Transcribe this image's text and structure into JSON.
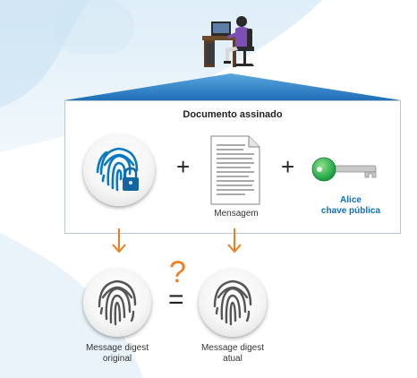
{
  "panel": {
    "title": "Documento assinado",
    "message_label": "Mensagem",
    "key_label_line1": "Alice",
    "key_label_line2": "chave pública"
  },
  "bottom": {
    "question": "?",
    "equals": "=",
    "left_label_line1": "Message digest",
    "left_label_line2": "original",
    "right_label_line1": "Message digest",
    "right_label_line2": "atual"
  },
  "symbols": {
    "plus": "+"
  },
  "colors": {
    "arrow": "#f07c1b",
    "fingerprint_blue": "#0a79c4",
    "fingerprint_gray": "#555555",
    "lock": "#1565a0",
    "key": "#1fa84a",
    "beam": "#2f83c9",
    "alice_text": "#0e6fc4"
  },
  "icons": [
    "person-at-computer-icon",
    "fingerprint-lock-icon",
    "document-icon",
    "key-icon",
    "fingerprint-icon",
    "arrow-down-icon"
  ]
}
